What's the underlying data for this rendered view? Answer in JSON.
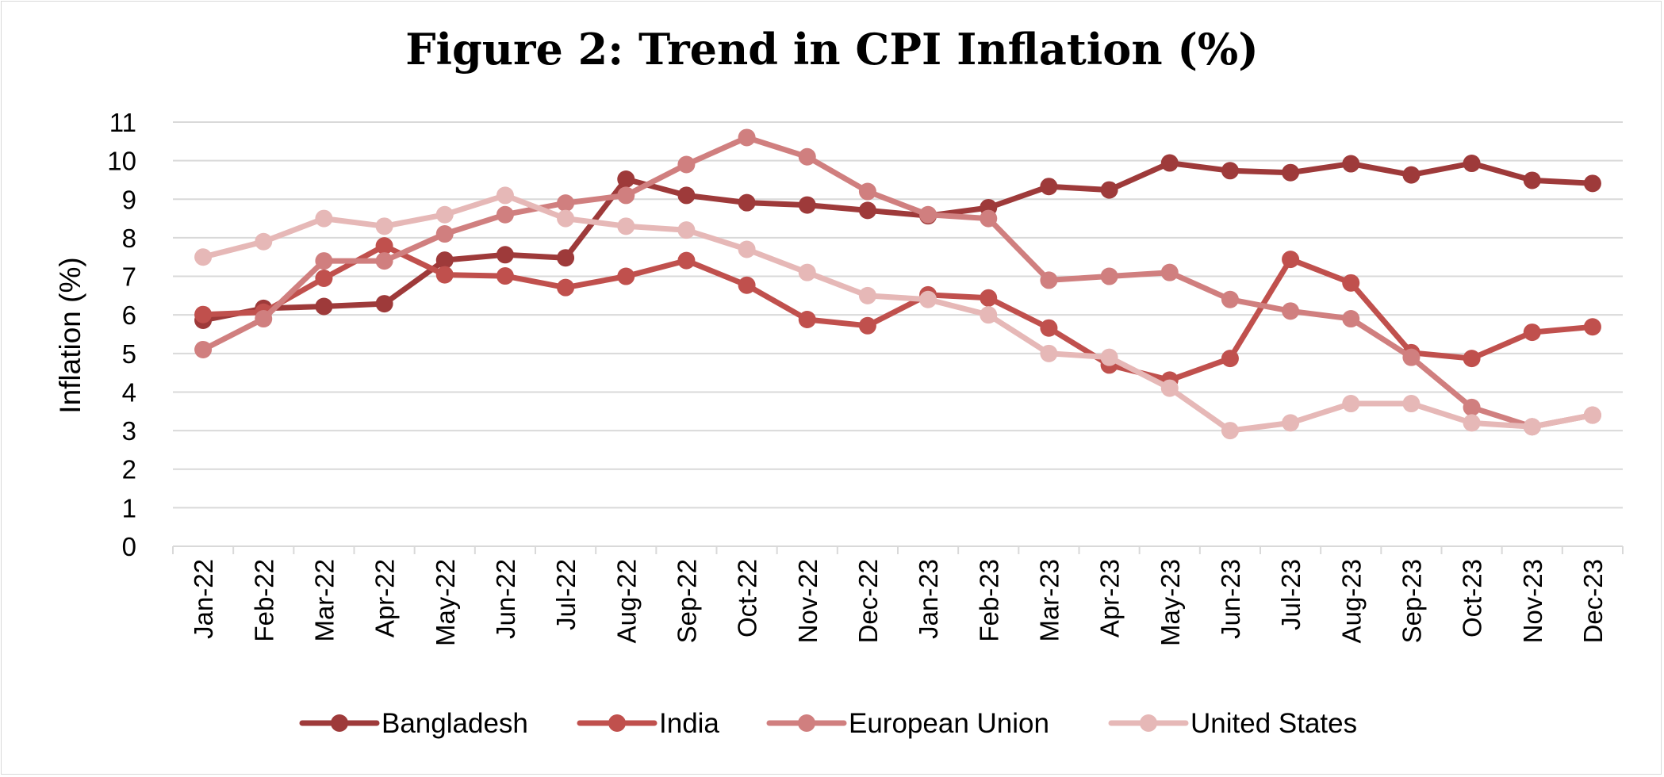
{
  "chart_data": {
    "type": "line",
    "title": "Figure 2: Trend in CPI Inflation (%)",
    "xlabel": "",
    "ylabel": "Inflation (%)",
    "ylim": [
      0,
      11
    ],
    "yticks": [
      "0",
      "1",
      "2",
      "3",
      "4",
      "5",
      "6",
      "7",
      "8",
      "9",
      "10",
      "11"
    ],
    "grid": true,
    "legend_position": "bottom",
    "categories": [
      "Jan-22",
      "Feb-22",
      "Mar-22",
      "Apr-22",
      "May-22",
      "Jun-22",
      "Jul-22",
      "Aug-22",
      "Sep-22",
      "Oct-22",
      "Nov-22",
      "Dec-22",
      "Jan-23",
      "Feb-23",
      "Mar-23",
      "Apr-23",
      "May-23",
      "Jun-23",
      "Jul-23",
      "Aug-23",
      "Sep-23",
      "Oct-23",
      "Nov-23",
      "Dec-23"
    ],
    "series": [
      {
        "name": "Bangladesh",
        "color": "#9e3a3a",
        "values": [
          5.86,
          6.17,
          6.22,
          6.29,
          7.42,
          7.56,
          7.48,
          9.52,
          9.1,
          8.91,
          8.85,
          8.71,
          8.57,
          8.78,
          9.33,
          9.24,
          9.94,
          9.74,
          9.69,
          9.92,
          9.63,
          9.93,
          9.49,
          9.41
        ]
      },
      {
        "name": "India",
        "color": "#c0504d",
        "values": [
          6.01,
          6.07,
          6.95,
          7.79,
          7.04,
          7.01,
          6.71,
          7.0,
          7.41,
          6.77,
          5.88,
          5.72,
          6.52,
          6.44,
          5.66,
          4.7,
          4.31,
          4.87,
          7.44,
          6.83,
          5.02,
          4.87,
          5.55,
          5.69
        ]
      },
      {
        "name": "European Union",
        "color": "#d07f7f",
        "values": [
          5.1,
          5.9,
          7.4,
          7.4,
          8.1,
          8.6,
          8.9,
          9.1,
          9.9,
          10.6,
          10.1,
          9.2,
          8.6,
          8.5,
          6.9,
          7.0,
          7.1,
          6.4,
          6.1,
          5.9,
          4.9,
          3.6,
          3.1,
          3.4
        ]
      },
      {
        "name": "United States",
        "color": "#e6b8b7",
        "values": [
          7.5,
          7.9,
          8.5,
          8.3,
          8.6,
          9.1,
          8.5,
          8.3,
          8.2,
          7.7,
          7.1,
          6.5,
          6.4,
          6.0,
          5.0,
          4.9,
          4.1,
          3.0,
          3.2,
          3.7,
          3.7,
          3.2,
          3.1,
          3.4
        ]
      }
    ]
  }
}
